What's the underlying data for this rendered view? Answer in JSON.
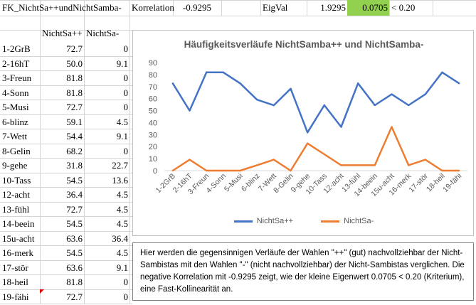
{
  "header": {
    "title": "FK_NichtSa++undNichtSamba-",
    "korrelation_label": "Korrelation",
    "korrelation_value": "-0.9295",
    "eigval_label": "EigVal",
    "eigval_1": "1.9295",
    "eigval_2": "0.0705",
    "criterion": "< 0.20"
  },
  "table": {
    "col1_header": "NichtSa++",
    "col2_header": "NichtSa-",
    "rows": [
      {
        "label": "1-2GrB",
        "v1": "72.7",
        "v2": "0"
      },
      {
        "label": "2-16hT",
        "v1": "50.0",
        "v2": "9.1"
      },
      {
        "label": "3-Freun",
        "v1": "81.8",
        "v2": "0"
      },
      {
        "label": "4-Sonn",
        "v1": "81.8",
        "v2": "0"
      },
      {
        "label": "5-Musi",
        "v1": "72.7",
        "v2": "0"
      },
      {
        "label": "6-blinz",
        "v1": "59.1",
        "v2": "4.5"
      },
      {
        "label": "7-Wett",
        "v1": "54.4",
        "v2": "9.1"
      },
      {
        "label": "8-Gelin",
        "v1": "68.2",
        "v2": "0"
      },
      {
        "label": "9-gehe",
        "v1": "31.8",
        "v2": "22.7"
      },
      {
        "label": "10-Tass",
        "v1": "54.5",
        "v2": "13.6"
      },
      {
        "label": "12-acht",
        "v1": "36.4",
        "v2": "4.5"
      },
      {
        "label": "13-fühl",
        "v1": "72.7",
        "v2": "4.5"
      },
      {
        "label": "14-beein",
        "v1": "54.5",
        "v2": "4.5"
      },
      {
        "label": "15u-acht",
        "v1": "63.6",
        "v2": "36.4"
      },
      {
        "label": "16-merk",
        "v1": "54.5",
        "v2": "4.5"
      },
      {
        "label": "17-stör",
        "v1": "63.6",
        "v2": "9.1"
      },
      {
        "label": "18-heil",
        "v1": "81.8",
        "v2": "0"
      },
      {
        "label": "19-fähi",
        "v1": "72.7",
        "v2": "0"
      }
    ]
  },
  "colors": {
    "series1": "#4472c4",
    "series2": "#ed7d31",
    "green_cell": "#92d050",
    "comment_marker": "#e00000"
  },
  "chart_data": {
    "type": "line",
    "title": "Häufigkeitsverläufe NichtSamba++ und NichtSamba-",
    "categories": [
      "1-2GrB",
      "2-16hT",
      "3-Freun",
      "4-Sonn",
      "5-Musi",
      "6-blinz",
      "7-Wett",
      "8-Gelin",
      "9-gehe",
      "10-Tass",
      "12-acht",
      "13-fühl",
      "14-beein",
      "15u-acht",
      "16-merk",
      "17-stör",
      "18-heil",
      "19-fähi"
    ],
    "series": [
      {
        "name": "NichtSa++",
        "values": [
          72.7,
          50.0,
          81.8,
          81.8,
          72.7,
          59.1,
          54.4,
          68.2,
          31.8,
          54.5,
          36.4,
          72.7,
          54.5,
          63.6,
          54.5,
          63.6,
          81.8,
          72.7
        ]
      },
      {
        "name": "NichtSa-",
        "values": [
          0,
          9.1,
          0,
          0,
          0,
          4.5,
          9.1,
          0,
          22.7,
          13.6,
          4.5,
          4.5,
          4.5,
          36.4,
          4.5,
          9.1,
          0,
          0
        ]
      }
    ],
    "ylim": [
      0,
      90
    ],
    "yticks": [
      "0",
      "10",
      "20",
      "30",
      "40",
      "50",
      "60",
      "70",
      "80",
      "90"
    ],
    "grid": false,
    "legend": "bottom"
  },
  "note": {
    "text": "Hier werden die gegensinnigen Verläufe der Wahlen \"++\" (gut) nachvollziehbar der Nicht-Sambistas mit den Wahlen \"-\" (nicht nachvollziehbar) der Nicht-Sambistas verglichen. Die negative Korrelation mit -0.9295 zeigt, wie der kleine Eigenwert 0.0705 < 0.20 (Kriterium), eine Fast-Kollinearität an."
  }
}
